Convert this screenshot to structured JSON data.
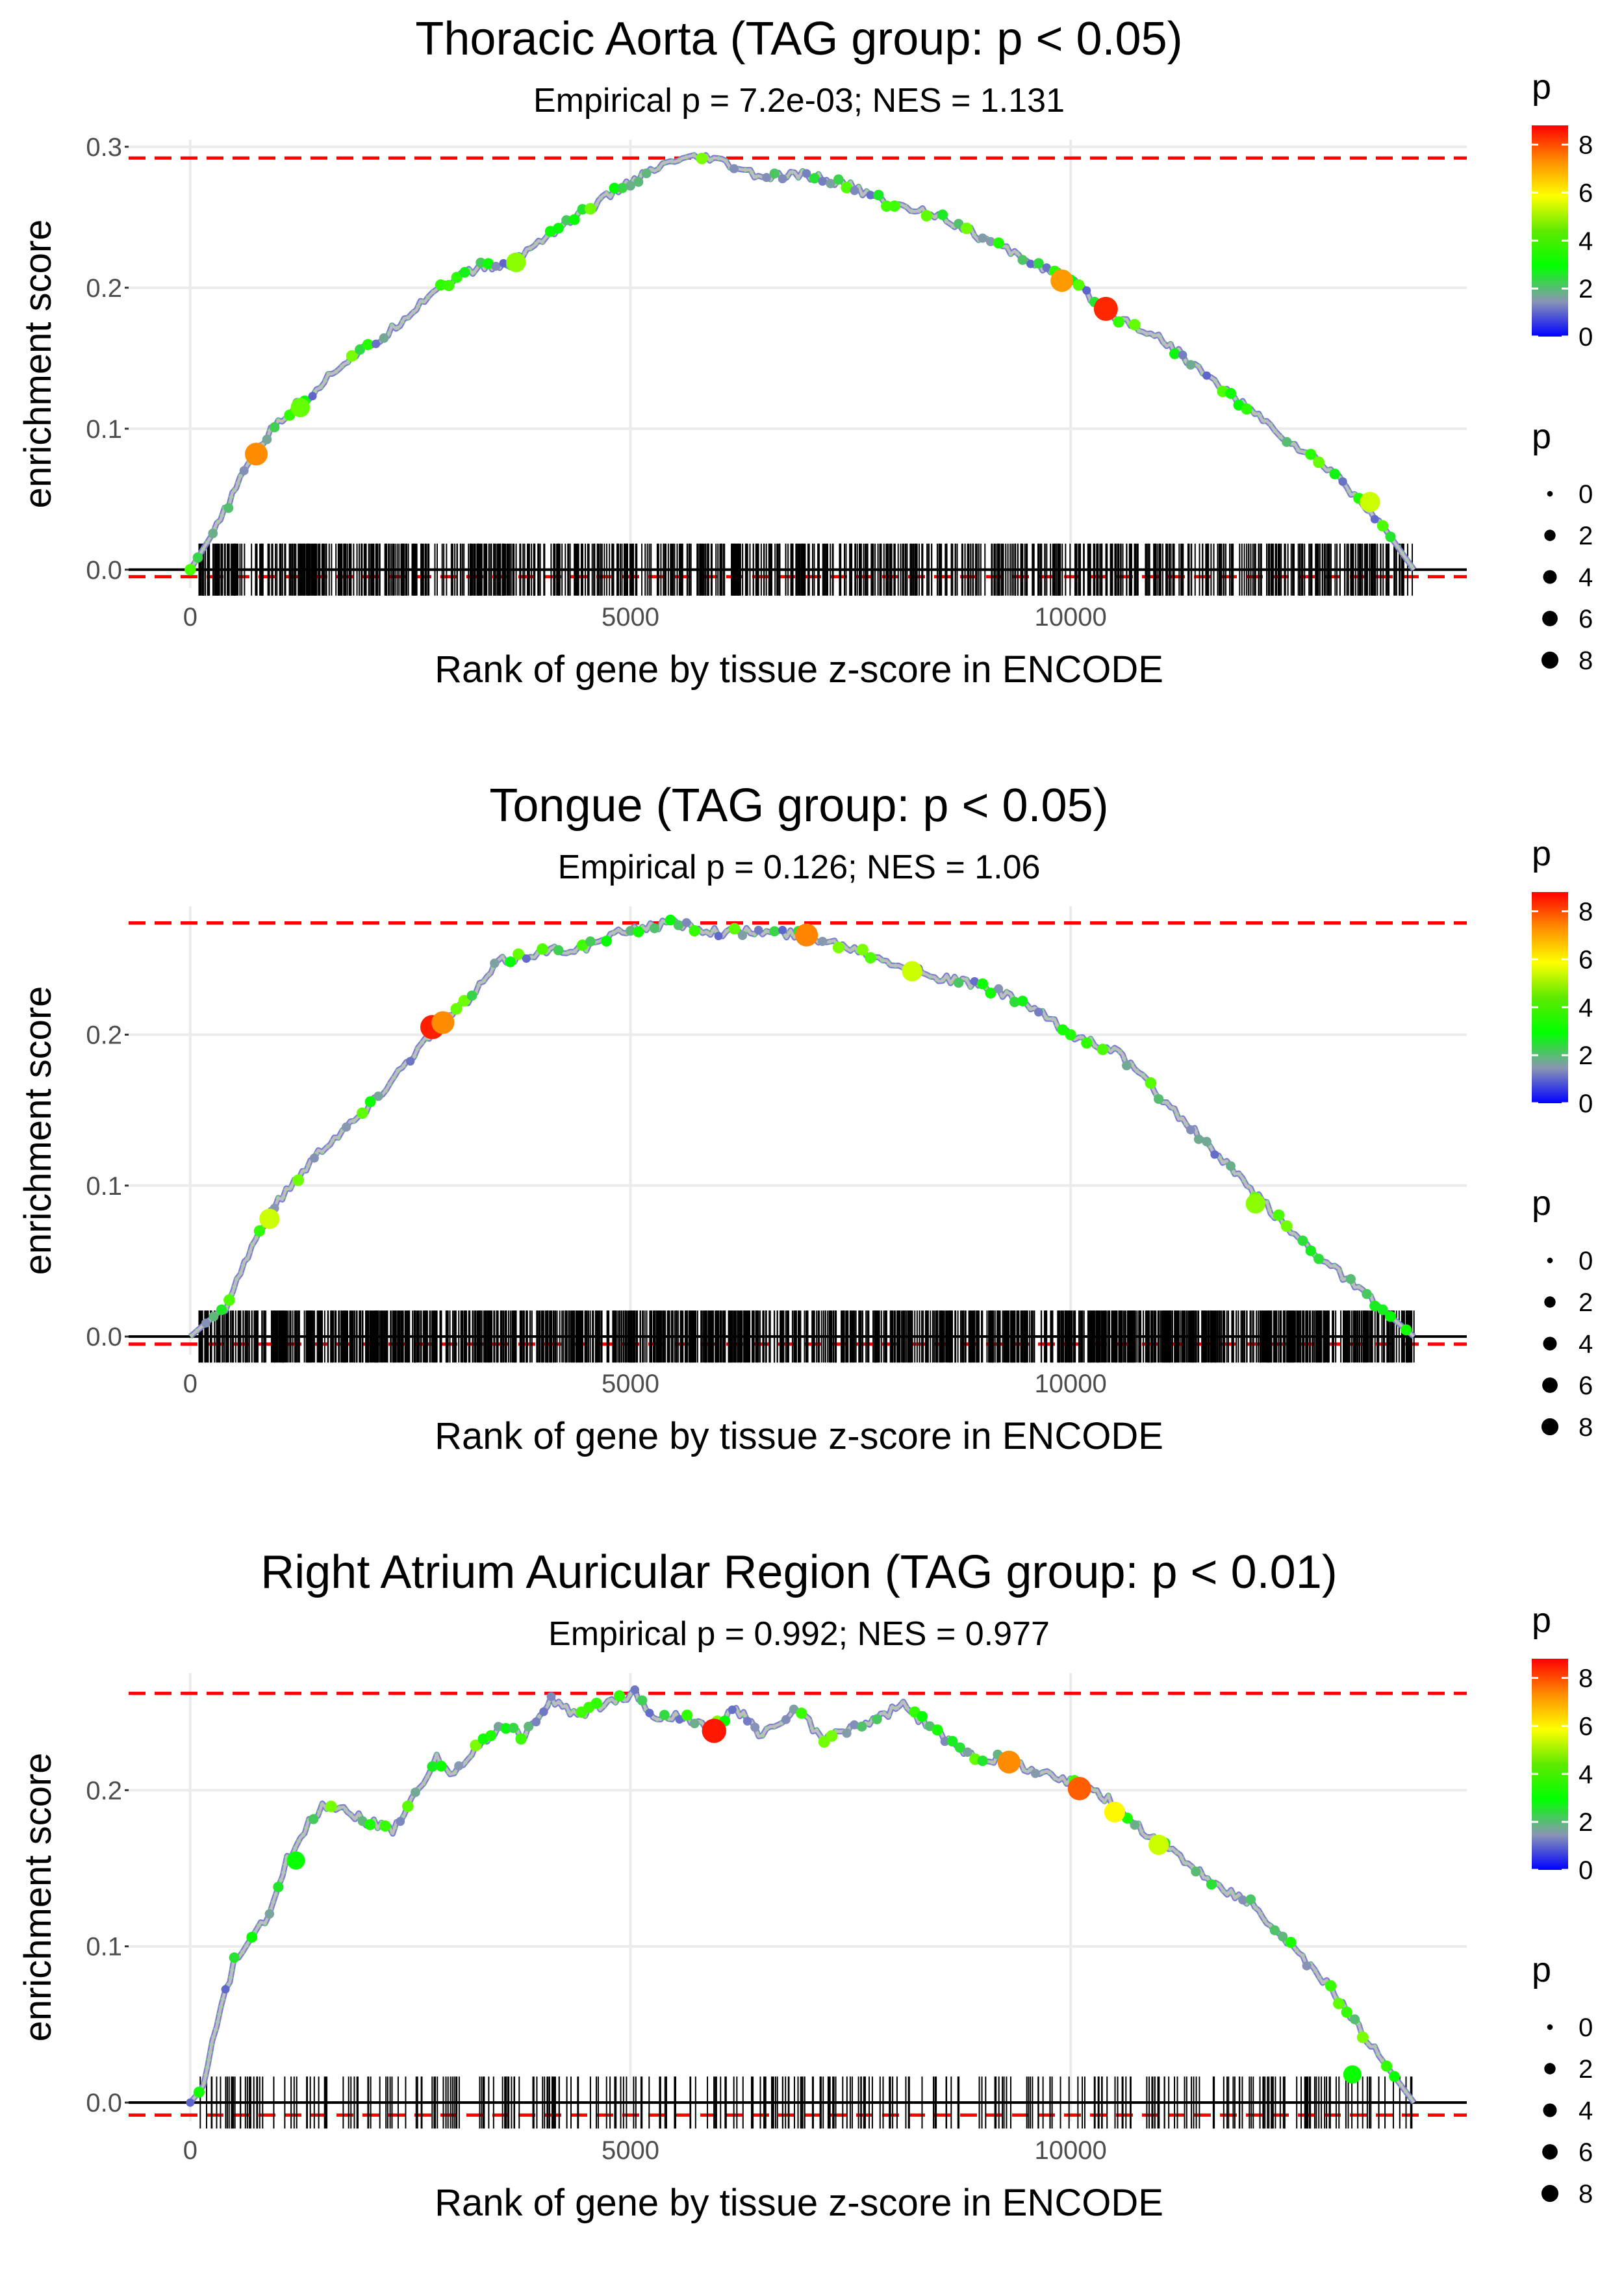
{
  "figure_title": "GSEA-style enrichment plots across three tissues",
  "chart_data": [
    {
      "type": "line",
      "title": "Thoracic Aorta (TAG group: p < 0.05)",
      "subtitle": "Empirical p = 7.2e-03; NES = 1.131",
      "xlabel": "Rank of gene by tissue z-score in ENCODE",
      "ylabel": "enrichment score",
      "xlim": [
        -700,
        14500
      ],
      "ylim": [
        -0.013,
        0.305
      ],
      "xticks": [
        0,
        5000,
        10000
      ],
      "xtick_labels": [
        "0",
        "5000",
        "10000"
      ],
      "yticks": [
        0.0,
        0.1,
        0.2,
        0.3
      ],
      "ytick_labels": [
        "0.0",
        "0.1",
        "0.2",
        "0.3"
      ],
      "max_es": 0.292,
      "min_es": -0.005,
      "curve": [
        [
          0,
          0.0
        ],
        [
          300,
          0.03
        ],
        [
          700,
          0.08
        ],
        [
          1000,
          0.105
        ],
        [
          1300,
          0.12
        ],
        [
          1700,
          0.145
        ],
        [
          2200,
          0.165
        ],
        [
          2800,
          0.2
        ],
        [
          3300,
          0.215
        ],
        [
          3600,
          0.215
        ],
        [
          4000,
          0.235
        ],
        [
          4500,
          0.255
        ],
        [
          5000,
          0.275
        ],
        [
          5500,
          0.29
        ],
        [
          5900,
          0.292
        ],
        [
          6500,
          0.278
        ],
        [
          7000,
          0.28
        ],
        [
          7500,
          0.272
        ],
        [
          8000,
          0.258
        ],
        [
          8500,
          0.252
        ],
        [
          9000,
          0.235
        ],
        [
          9500,
          0.22
        ],
        [
          10000,
          0.205
        ],
        [
          10500,
          0.18
        ],
        [
          11000,
          0.165
        ],
        [
          11500,
          0.14
        ],
        [
          12000,
          0.115
        ],
        [
          12500,
          0.09
        ],
        [
          13000,
          0.068
        ],
        [
          13500,
          0.035
        ],
        [
          13900,
          0.0
        ]
      ],
      "highlight_points": [
        {
          "x": 750,
          "y": 0.082,
          "p": 7.2
        },
        {
          "x": 9900,
          "y": 0.205,
          "p": 7.0
        },
        {
          "x": 10400,
          "y": 0.185,
          "p": 8.5
        },
        {
          "x": 13400,
          "y": 0.048,
          "p": 5.0
        },
        {
          "x": 1250,
          "y": 0.115,
          "p": 4.2
        },
        {
          "x": 3700,
          "y": 0.218,
          "p": 4.5
        }
      ],
      "rug": {
        "start": 100,
        "end": 13900,
        "count": 900,
        "seed": 7
      }
    },
    {
      "type": "line",
      "title": "Tongue (TAG group: p < 0.05)",
      "subtitle": "Empirical p = 0.126; NES = 1.06",
      "xlabel": "Rank of gene by tissue z-score in ENCODE",
      "ylabel": "enrichment score",
      "xlim": [
        -700,
        14500
      ],
      "ylim": [
        -0.012,
        0.285
      ],
      "xticks": [
        0,
        5000,
        10000
      ],
      "xtick_labels": [
        "0",
        "5000",
        "10000"
      ],
      "yticks": [
        0.0,
        0.1,
        0.2
      ],
      "ytick_labels": [
        "0.0",
        "0.1",
        "0.2"
      ],
      "max_es": 0.274,
      "min_es": -0.005,
      "curve": [
        [
          0,
          0.0
        ],
        [
          400,
          0.02
        ],
        [
          700,
          0.06
        ],
        [
          1000,
          0.09
        ],
        [
          1500,
          0.125
        ],
        [
          2000,
          0.15
        ],
        [
          2500,
          0.185
        ],
        [
          2800,
          0.205
        ],
        [
          3200,
          0.225
        ],
        [
          3500,
          0.248
        ],
        [
          4000,
          0.255
        ],
        [
          4500,
          0.258
        ],
        [
          5000,
          0.27
        ],
        [
          5500,
          0.274
        ],
        [
          6000,
          0.268
        ],
        [
          6500,
          0.268
        ],
        [
          7000,
          0.266
        ],
        [
          7500,
          0.258
        ],
        [
          8000,
          0.248
        ],
        [
          8500,
          0.238
        ],
        [
          9000,
          0.232
        ],
        [
          9500,
          0.22
        ],
        [
          10000,
          0.2
        ],
        [
          10500,
          0.19
        ],
        [
          11000,
          0.16
        ],
        [
          11500,
          0.13
        ],
        [
          12000,
          0.1
        ],
        [
          12500,
          0.07
        ],
        [
          13000,
          0.045
        ],
        [
          13500,
          0.02
        ],
        [
          13900,
          0.0
        ]
      ],
      "highlight_points": [
        {
          "x": 2750,
          "y": 0.205,
          "p": 8.6
        },
        {
          "x": 2870,
          "y": 0.208,
          "p": 7.2
        },
        {
          "x": 7000,
          "y": 0.266,
          "p": 7.3
        },
        {
          "x": 900,
          "y": 0.078,
          "p": 5.0
        },
        {
          "x": 8200,
          "y": 0.242,
          "p": 5.0
        },
        {
          "x": 12100,
          "y": 0.088,
          "p": 4.5
        }
      ],
      "rug": {
        "start": 100,
        "end": 13900,
        "count": 1400,
        "seed": 13
      }
    },
    {
      "type": "line",
      "title": "Right Atrium Auricular Region (TAG group: p < 0.01)",
      "subtitle": "Empirical p = 0.992; NES = 0.977",
      "xlabel": "Rank of gene by tissue z-score in ENCODE",
      "ylabel": "enrichment score",
      "xlim": [
        -700,
        14500
      ],
      "ylim": [
        -0.012,
        0.275
      ],
      "xticks": [
        0,
        5000,
        10000
      ],
      "xtick_labels": [
        "0",
        "5000",
        "10000"
      ],
      "yticks": [
        0.0,
        0.1,
        0.2
      ],
      "ytick_labels": [
        "0.0",
        "0.1",
        "0.2"
      ],
      "max_es": 0.262,
      "min_es": -0.008,
      "curve": [
        [
          0,
          0.0
        ],
        [
          150,
          0.01
        ],
        [
          300,
          0.05
        ],
        [
          500,
          0.09
        ],
        [
          700,
          0.105
        ],
        [
          900,
          0.12
        ],
        [
          1100,
          0.155
        ],
        [
          1300,
          0.175
        ],
        [
          1500,
          0.19
        ],
        [
          1700,
          0.19
        ],
        [
          2000,
          0.18
        ],
        [
          2300,
          0.175
        ],
        [
          2600,
          0.2
        ],
        [
          2800,
          0.22
        ],
        [
          3000,
          0.21
        ],
        [
          3200,
          0.225
        ],
        [
          3500,
          0.24
        ],
        [
          3800,
          0.235
        ],
        [
          4100,
          0.258
        ],
        [
          4400,
          0.248
        ],
        [
          4700,
          0.255
        ],
        [
          5050,
          0.262
        ],
        [
          5300,
          0.245
        ],
        [
          5600,
          0.248
        ],
        [
          5900,
          0.238
        ],
        [
          6200,
          0.252
        ],
        [
          6500,
          0.235
        ],
        [
          6900,
          0.252
        ],
        [
          7200,
          0.232
        ],
        [
          7500,
          0.24
        ],
        [
          7800,
          0.245
        ],
        [
          8100,
          0.255
        ],
        [
          8400,
          0.24
        ],
        [
          8700,
          0.228
        ],
        [
          9000,
          0.22
        ],
        [
          9300,
          0.22
        ],
        [
          9600,
          0.212
        ],
        [
          10000,
          0.205
        ],
        [
          10300,
          0.2
        ],
        [
          10600,
          0.185
        ],
        [
          10900,
          0.17
        ],
        [
          11200,
          0.16
        ],
        [
          11600,
          0.14
        ],
        [
          12000,
          0.13
        ],
        [
          12500,
          0.1
        ],
        [
          13000,
          0.07
        ],
        [
          13500,
          0.03
        ],
        [
          13900,
          0.0
        ]
      ],
      "highlight_points": [
        {
          "x": 5950,
          "y": 0.238,
          "p": 8.7
        },
        {
          "x": 9300,
          "y": 0.218,
          "p": 7.2
        },
        {
          "x": 10100,
          "y": 0.201,
          "p": 7.8
        },
        {
          "x": 11000,
          "y": 0.165,
          "p": 5.0
        },
        {
          "x": 10500,
          "y": 0.186,
          "p": 5.5
        },
        {
          "x": 1200,
          "y": 0.155,
          "p": 3.5
        },
        {
          "x": 13200,
          "y": 0.018,
          "p": 3.5
        }
      ],
      "rug": {
        "start": 100,
        "end": 13900,
        "count": 340,
        "seed": 21
      }
    }
  ],
  "legends": {
    "color_title": "p",
    "color_ticks": [
      "8",
      "6",
      "4",
      "2",
      "0"
    ],
    "color_stops": [
      "#ff0000",
      "#ff8c00",
      "#ffff00",
      "#5eea00",
      "#00ff00",
      "#8a96b4",
      "#0000ff"
    ],
    "size_title": "p",
    "size_labels": [
      "0",
      "2",
      "4",
      "6",
      "8"
    ]
  },
  "colors": {
    "hline": "#ff0000",
    "curve": "#bebebe",
    "grid": "#ebebeb",
    "axis": "#000000"
  }
}
